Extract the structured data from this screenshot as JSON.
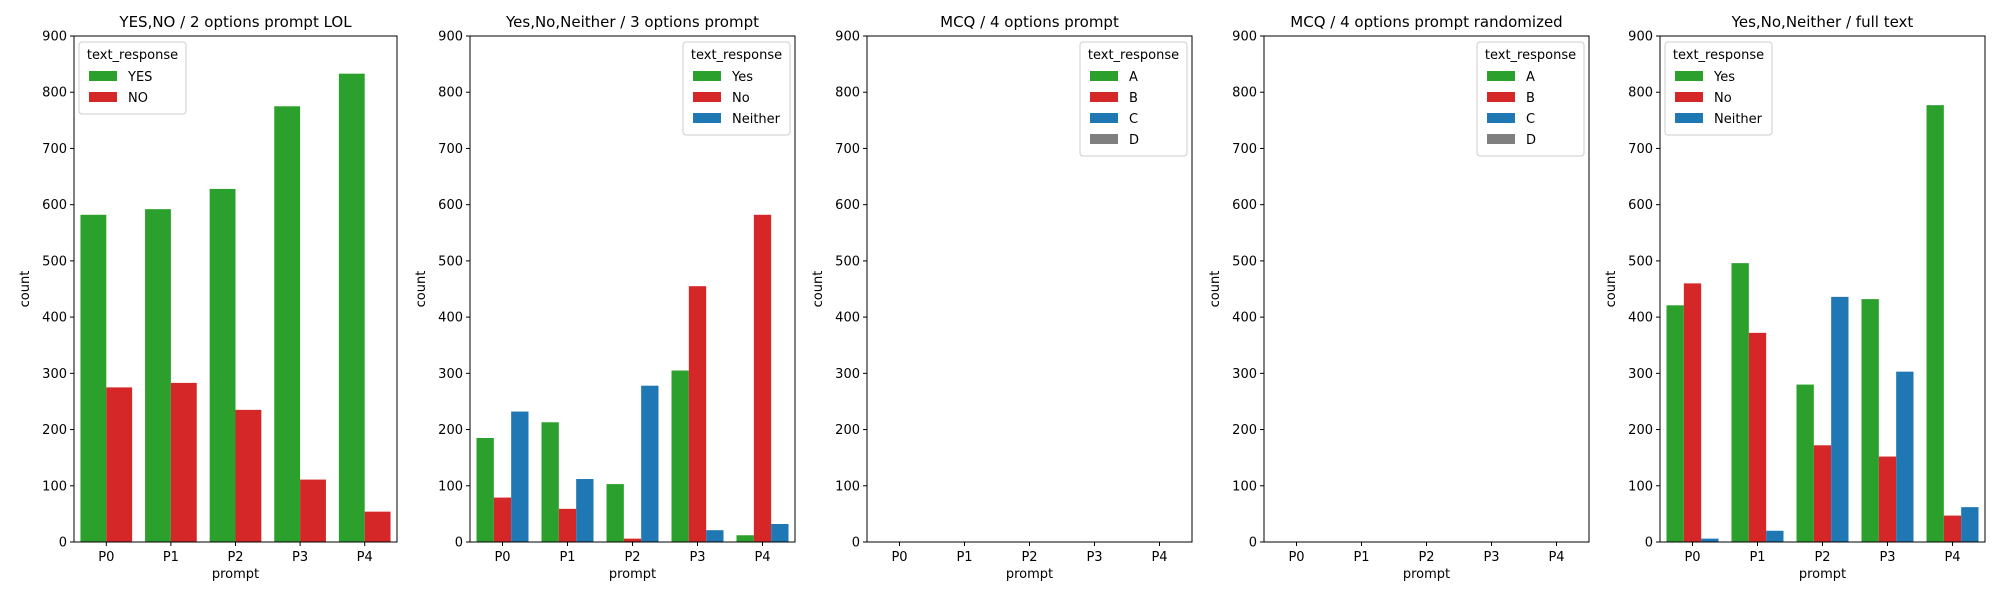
{
  "chart_data": [
    {
      "type": "bar",
      "title": "YES,NO / 2 options prompt LOL",
      "xlabel": "prompt",
      "ylabel": "count",
      "ylim": [
        0,
        900
      ],
      "yticks": [
        0,
        100,
        200,
        300,
        400,
        500,
        600,
        700,
        800,
        900
      ],
      "categories": [
        "P0",
        "P1",
        "P2",
        "P3",
        "P4"
      ],
      "legend": {
        "title": "text_response",
        "position": "top-left"
      },
      "series": [
        {
          "name": "YES",
          "color": "#2ca02c",
          "values": [
            582,
            592,
            628,
            775,
            833
          ]
        },
        {
          "name": "NO",
          "color": "#d62728",
          "values": [
            275,
            283,
            235,
            111,
            54
          ]
        }
      ]
    },
    {
      "type": "bar",
      "title": "Yes,No,Neither / 3 options prompt",
      "xlabel": "prompt",
      "ylabel": "count",
      "ylim": [
        0,
        900
      ],
      "yticks": [
        0,
        100,
        200,
        300,
        400,
        500,
        600,
        700,
        800,
        900
      ],
      "categories": [
        "P0",
        "P1",
        "P2",
        "P3",
        "P4"
      ],
      "legend": {
        "title": "text_response",
        "position": "top-right"
      },
      "series": [
        {
          "name": "Yes",
          "color": "#2ca02c",
          "values": [
            185,
            213,
            103,
            305,
            12
          ]
        },
        {
          "name": "No",
          "color": "#d62728",
          "values": [
            79,
            59,
            6,
            455,
            582
          ]
        },
        {
          "name": "Neither",
          "color": "#1f77b4",
          "values": [
            232,
            112,
            278,
            21,
            32
          ]
        }
      ]
    },
    {
      "type": "bar",
      "title": "MCQ / 4 options prompt",
      "xlabel": "prompt",
      "ylabel": "count",
      "ylim": [
        0,
        900
      ],
      "yticks": [
        0,
        100,
        200,
        300,
        400,
        500,
        600,
        700,
        800,
        900
      ],
      "categories": [
        "P0",
        "P1",
        "P2",
        "P3",
        "P4"
      ],
      "legend": {
        "title": "text_response",
        "position": "top-right"
      },
      "series": [
        {
          "name": "A",
          "color": "#2ca02c",
          "values": [
            0,
            0,
            0,
            0,
            0
          ]
        },
        {
          "name": "B",
          "color": "#d62728",
          "values": [
            0,
            0,
            0,
            0,
            0
          ]
        },
        {
          "name": "C",
          "color": "#1f77b4",
          "values": [
            0,
            0,
            0,
            0,
            0
          ]
        },
        {
          "name": "D",
          "color": "#7f7f7f",
          "values": [
            0,
            0,
            0,
            0,
            0
          ]
        }
      ]
    },
    {
      "type": "bar",
      "title": "MCQ / 4 options prompt randomized",
      "xlabel": "prompt",
      "ylabel": "count",
      "ylim": [
        0,
        900
      ],
      "yticks": [
        0,
        100,
        200,
        300,
        400,
        500,
        600,
        700,
        800,
        900
      ],
      "categories": [
        "P0",
        "P1",
        "P2",
        "P3",
        "P4"
      ],
      "legend": {
        "title": "text_response",
        "position": "top-right"
      },
      "series": [
        {
          "name": "A",
          "color": "#2ca02c",
          "values": [
            0,
            0,
            0,
            0,
            0
          ]
        },
        {
          "name": "B",
          "color": "#d62728",
          "values": [
            0,
            0,
            0,
            0,
            0
          ]
        },
        {
          "name": "C",
          "color": "#1f77b4",
          "values": [
            0,
            0,
            0,
            0,
            0
          ]
        },
        {
          "name": "D",
          "color": "#7f7f7f",
          "values": [
            0,
            0,
            0,
            0,
            0
          ]
        }
      ]
    },
    {
      "type": "bar",
      "title": "Yes,No,Neither / full text",
      "xlabel": "prompt",
      "ylabel": "count",
      "ylim": [
        0,
        900
      ],
      "yticks": [
        0,
        100,
        200,
        300,
        400,
        500,
        600,
        700,
        800,
        900
      ],
      "categories": [
        "P0",
        "P1",
        "P2",
        "P3",
        "P4"
      ],
      "legend": {
        "title": "text_response",
        "position": "top-left"
      },
      "series": [
        {
          "name": "Yes",
          "color": "#2ca02c",
          "values": [
            421,
            496,
            280,
            432,
            777
          ]
        },
        {
          "name": "No",
          "color": "#d62728",
          "values": [
            460,
            372,
            172,
            152,
            47
          ]
        },
        {
          "name": "Neither",
          "color": "#1f77b4",
          "values": [
            6,
            20,
            436,
            303,
            62
          ]
        }
      ]
    }
  ]
}
